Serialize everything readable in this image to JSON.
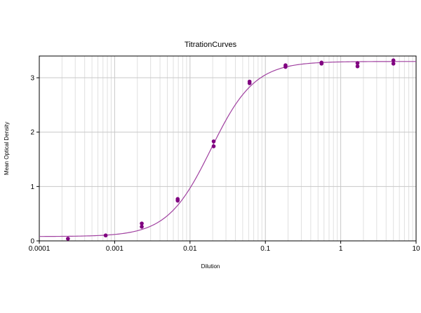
{
  "chart_data": {
    "type": "scatter",
    "title": "TitrationCurves",
    "xlabel": "Dilution",
    "ylabel": "Mean Optical Density",
    "x_scale": "log",
    "xlim": [
      0.0001,
      10
    ],
    "ylim": [
      0,
      3.4
    ],
    "x_ticks": [
      "0.0001",
      "0.001",
      "0.01",
      "0.1",
      "1",
      "10"
    ],
    "y_ticks": [
      "0",
      "1",
      "2",
      "3"
    ],
    "grid": true,
    "legend": "none",
    "point_color": "#800080",
    "curve_color": "#a040a0",
    "points": [
      {
        "x": 0.00024,
        "y": 0.04
      },
      {
        "x": 0.00076,
        "y": 0.1
      },
      {
        "x": 0.00229,
        "y": 0.32
      },
      {
        "x": 0.00229,
        "y": 0.26
      },
      {
        "x": 0.00686,
        "y": 0.77
      },
      {
        "x": 0.00686,
        "y": 0.74
      },
      {
        "x": 0.0206,
        "y": 1.83
      },
      {
        "x": 0.0206,
        "y": 1.74
      },
      {
        "x": 0.0617,
        "y": 2.93
      },
      {
        "x": 0.0617,
        "y": 2.9
      },
      {
        "x": 0.185,
        "y": 3.23
      },
      {
        "x": 0.185,
        "y": 3.2
      },
      {
        "x": 0.556,
        "y": 3.28
      },
      {
        "x": 0.556,
        "y": 3.26
      },
      {
        "x": 1.67,
        "y": 3.27
      },
      {
        "x": 1.67,
        "y": 3.21
      },
      {
        "x": 5.0,
        "y": 3.32
      },
      {
        "x": 5.0,
        "y": 3.26
      }
    ],
    "fit": {
      "model": "4PL",
      "bottom": 0.08,
      "top": 3.3,
      "ec50": 0.019,
      "hill": 1.5
    }
  }
}
